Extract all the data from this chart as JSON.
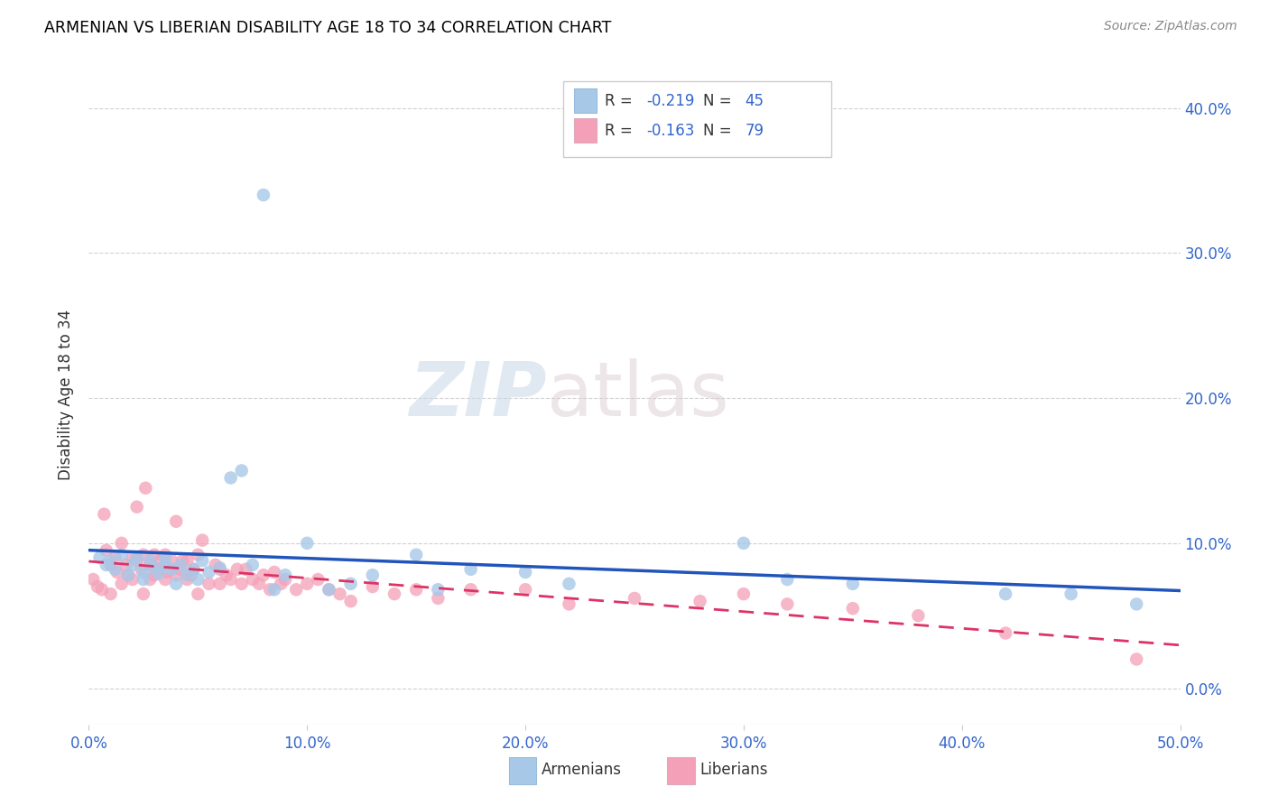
{
  "title": "ARMENIAN VS LIBERIAN DISABILITY AGE 18 TO 34 CORRELATION CHART",
  "source": "Source: ZipAtlas.com",
  "ylabel": "Disability Age 18 to 34",
  "xlim": [
    0.0,
    0.5
  ],
  "ylim": [
    -0.025,
    0.43
  ],
  "armenian_color": "#a8c8e8",
  "liberian_color": "#f4a0b8",
  "armenian_line_color": "#2255bb",
  "liberian_line_color": "#dd3366",
  "R_armenian": -0.219,
  "N_armenian": 45,
  "R_liberian": -0.163,
  "N_liberian": 79,
  "watermark_zip": "ZIP",
  "watermark_atlas": "atlas",
  "armenian_x": [
    0.005,
    0.008,
    0.01,
    0.012,
    0.015,
    0.018,
    0.02,
    0.022,
    0.025,
    0.025,
    0.028,
    0.03,
    0.032,
    0.035,
    0.035,
    0.038,
    0.04,
    0.042,
    0.045,
    0.048,
    0.05,
    0.052,
    0.055,
    0.06,
    0.065,
    0.07,
    0.075,
    0.08,
    0.085,
    0.09,
    0.1,
    0.11,
    0.12,
    0.13,
    0.15,
    0.16,
    0.175,
    0.2,
    0.22,
    0.3,
    0.32,
    0.35,
    0.42,
    0.45,
    0.48
  ],
  "armenian_y": [
    0.09,
    0.085,
    0.088,
    0.082,
    0.092,
    0.078,
    0.085,
    0.09,
    0.08,
    0.075,
    0.088,
    0.083,
    0.079,
    0.085,
    0.09,
    0.082,
    0.072,
    0.085,
    0.078,
    0.082,
    0.075,
    0.088,
    0.08,
    0.083,
    0.145,
    0.15,
    0.085,
    0.34,
    0.068,
    0.078,
    0.1,
    0.068,
    0.072,
    0.078,
    0.092,
    0.068,
    0.082,
    0.08,
    0.072,
    0.1,
    0.075,
    0.072,
    0.065,
    0.065,
    0.058
  ],
  "liberian_x": [
    0.002,
    0.004,
    0.006,
    0.007,
    0.008,
    0.01,
    0.01,
    0.012,
    0.013,
    0.015,
    0.015,
    0.017,
    0.018,
    0.02,
    0.02,
    0.022,
    0.022,
    0.024,
    0.025,
    0.025,
    0.026,
    0.028,
    0.028,
    0.03,
    0.03,
    0.032,
    0.033,
    0.035,
    0.035,
    0.036,
    0.038,
    0.04,
    0.04,
    0.042,
    0.043,
    0.045,
    0.045,
    0.047,
    0.048,
    0.05,
    0.05,
    0.052,
    0.055,
    0.058,
    0.06,
    0.06,
    0.063,
    0.065,
    0.068,
    0.07,
    0.072,
    0.075,
    0.078,
    0.08,
    0.083,
    0.085,
    0.088,
    0.09,
    0.095,
    0.1,
    0.105,
    0.11,
    0.115,
    0.12,
    0.13,
    0.14,
    0.15,
    0.16,
    0.175,
    0.2,
    0.22,
    0.25,
    0.28,
    0.3,
    0.32,
    0.35,
    0.38,
    0.42,
    0.48
  ],
  "liberian_y": [
    0.075,
    0.07,
    0.068,
    0.12,
    0.095,
    0.085,
    0.065,
    0.09,
    0.08,
    0.1,
    0.072,
    0.085,
    0.078,
    0.09,
    0.075,
    0.088,
    0.125,
    0.082,
    0.092,
    0.065,
    0.138,
    0.085,
    0.075,
    0.078,
    0.092,
    0.082,
    0.088,
    0.075,
    0.092,
    0.08,
    0.088,
    0.078,
    0.115,
    0.082,
    0.088,
    0.075,
    0.088,
    0.078,
    0.082,
    0.092,
    0.065,
    0.102,
    0.072,
    0.085,
    0.072,
    0.082,
    0.078,
    0.075,
    0.082,
    0.072,
    0.082,
    0.075,
    0.072,
    0.078,
    0.068,
    0.08,
    0.072,
    0.075,
    0.068,
    0.072,
    0.075,
    0.068,
    0.065,
    0.06,
    0.07,
    0.065,
    0.068,
    0.062,
    0.068,
    0.068,
    0.058,
    0.062,
    0.06,
    0.065,
    0.058,
    0.055,
    0.05,
    0.038,
    0.02
  ]
}
